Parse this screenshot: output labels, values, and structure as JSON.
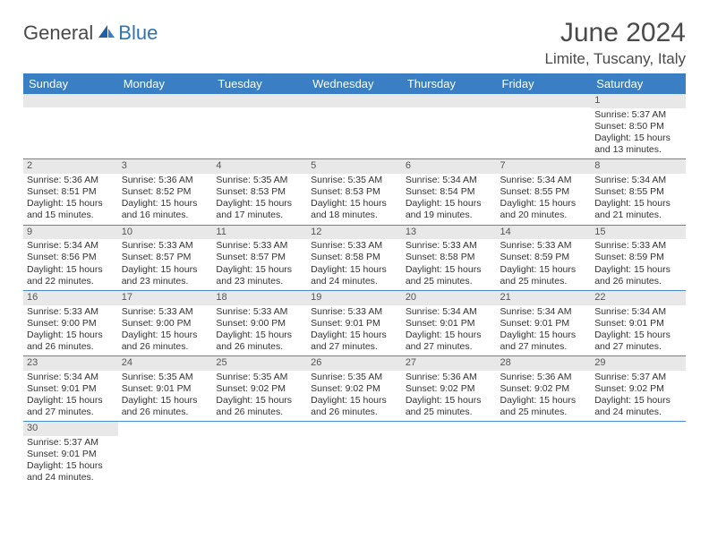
{
  "logo": {
    "dark": "General",
    "blue": "Blue"
  },
  "title": "June 2024",
  "location": "Limite, Tuscany, Italy",
  "colors": {
    "header_bg": "#3a7fc4",
    "header_text": "#ffffff",
    "daynum_bg": "#e8e8e8",
    "cell_border": "#4a8bc9",
    "title_color": "#4a4a4a",
    "logo_blue": "#2e75b6"
  },
  "weekdays": [
    "Sunday",
    "Monday",
    "Tuesday",
    "Wednesday",
    "Thursday",
    "Friday",
    "Saturday"
  ],
  "weeks": [
    [
      null,
      null,
      null,
      null,
      null,
      null,
      {
        "n": "1",
        "sr": "5:37 AM",
        "ss": "8:50 PM",
        "dl": "15 hours and 13 minutes."
      }
    ],
    [
      {
        "n": "2",
        "sr": "5:36 AM",
        "ss": "8:51 PM",
        "dl": "15 hours and 15 minutes."
      },
      {
        "n": "3",
        "sr": "5:36 AM",
        "ss": "8:52 PM",
        "dl": "15 hours and 16 minutes."
      },
      {
        "n": "4",
        "sr": "5:35 AM",
        "ss": "8:53 PM",
        "dl": "15 hours and 17 minutes."
      },
      {
        "n": "5",
        "sr": "5:35 AM",
        "ss": "8:53 PM",
        "dl": "15 hours and 18 minutes."
      },
      {
        "n": "6",
        "sr": "5:34 AM",
        "ss": "8:54 PM",
        "dl": "15 hours and 19 minutes."
      },
      {
        "n": "7",
        "sr": "5:34 AM",
        "ss": "8:55 PM",
        "dl": "15 hours and 20 minutes."
      },
      {
        "n": "8",
        "sr": "5:34 AM",
        "ss": "8:55 PM",
        "dl": "15 hours and 21 minutes."
      }
    ],
    [
      {
        "n": "9",
        "sr": "5:34 AM",
        "ss": "8:56 PM",
        "dl": "15 hours and 22 minutes."
      },
      {
        "n": "10",
        "sr": "5:33 AM",
        "ss": "8:57 PM",
        "dl": "15 hours and 23 minutes."
      },
      {
        "n": "11",
        "sr": "5:33 AM",
        "ss": "8:57 PM",
        "dl": "15 hours and 23 minutes."
      },
      {
        "n": "12",
        "sr": "5:33 AM",
        "ss": "8:58 PM",
        "dl": "15 hours and 24 minutes."
      },
      {
        "n": "13",
        "sr": "5:33 AM",
        "ss": "8:58 PM",
        "dl": "15 hours and 25 minutes."
      },
      {
        "n": "14",
        "sr": "5:33 AM",
        "ss": "8:59 PM",
        "dl": "15 hours and 25 minutes."
      },
      {
        "n": "15",
        "sr": "5:33 AM",
        "ss": "8:59 PM",
        "dl": "15 hours and 26 minutes."
      }
    ],
    [
      {
        "n": "16",
        "sr": "5:33 AM",
        "ss": "9:00 PM",
        "dl": "15 hours and 26 minutes."
      },
      {
        "n": "17",
        "sr": "5:33 AM",
        "ss": "9:00 PM",
        "dl": "15 hours and 26 minutes."
      },
      {
        "n": "18",
        "sr": "5:33 AM",
        "ss": "9:00 PM",
        "dl": "15 hours and 26 minutes."
      },
      {
        "n": "19",
        "sr": "5:33 AM",
        "ss": "9:01 PM",
        "dl": "15 hours and 27 minutes."
      },
      {
        "n": "20",
        "sr": "5:34 AM",
        "ss": "9:01 PM",
        "dl": "15 hours and 27 minutes."
      },
      {
        "n": "21",
        "sr": "5:34 AM",
        "ss": "9:01 PM",
        "dl": "15 hours and 27 minutes."
      },
      {
        "n": "22",
        "sr": "5:34 AM",
        "ss": "9:01 PM",
        "dl": "15 hours and 27 minutes."
      }
    ],
    [
      {
        "n": "23",
        "sr": "5:34 AM",
        "ss": "9:01 PM",
        "dl": "15 hours and 27 minutes."
      },
      {
        "n": "24",
        "sr": "5:35 AM",
        "ss": "9:01 PM",
        "dl": "15 hours and 26 minutes."
      },
      {
        "n": "25",
        "sr": "5:35 AM",
        "ss": "9:02 PM",
        "dl": "15 hours and 26 minutes."
      },
      {
        "n": "26",
        "sr": "5:35 AM",
        "ss": "9:02 PM",
        "dl": "15 hours and 26 minutes."
      },
      {
        "n": "27",
        "sr": "5:36 AM",
        "ss": "9:02 PM",
        "dl": "15 hours and 25 minutes."
      },
      {
        "n": "28",
        "sr": "5:36 AM",
        "ss": "9:02 PM",
        "dl": "15 hours and 25 minutes."
      },
      {
        "n": "29",
        "sr": "5:37 AM",
        "ss": "9:02 PM",
        "dl": "15 hours and 24 minutes."
      }
    ],
    [
      {
        "n": "30",
        "sr": "5:37 AM",
        "ss": "9:01 PM",
        "dl": "15 hours and 24 minutes."
      },
      null,
      null,
      null,
      null,
      null,
      null
    ]
  ],
  "labels": {
    "sunrise": "Sunrise:",
    "sunset": "Sunset:",
    "daylight": "Daylight:"
  }
}
